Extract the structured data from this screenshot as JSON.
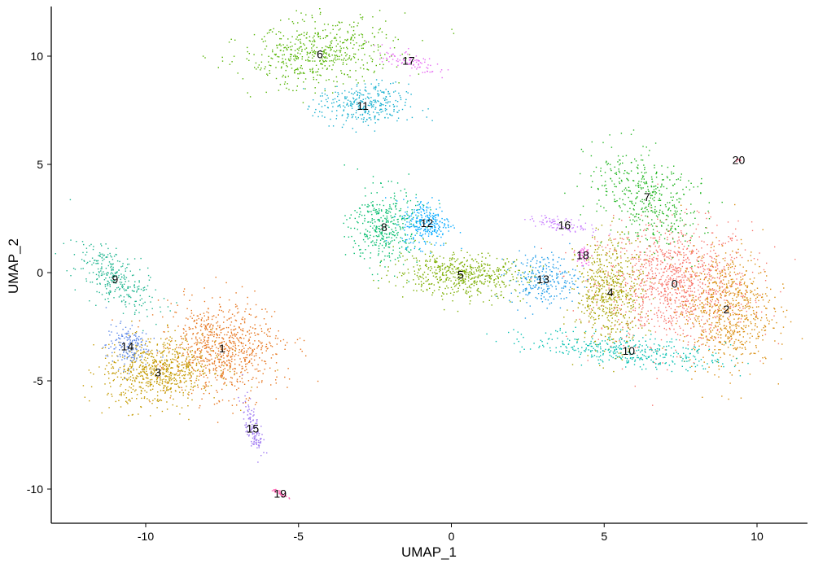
{
  "chart_data": {
    "type": "scatter",
    "title": "",
    "xlabel": "UMAP_1",
    "ylabel": "UMAP_2",
    "xlim": [
      -13.1,
      11.6
    ],
    "ylim": [
      -11.5,
      12.4
    ],
    "xticks": [
      -10,
      -5,
      0,
      5,
      10
    ],
    "yticks": [
      -10,
      -5,
      0,
      5,
      10
    ],
    "grid": false,
    "legend": "none",
    "clusters": [
      {
        "label": "0",
        "x": 7.3,
        "y": -0.5,
        "color": "#F8766D"
      },
      {
        "label": "1",
        "x": -7.5,
        "y": -3.5,
        "color": "#E7751D"
      },
      {
        "label": "2",
        "x": 9.0,
        "y": -1.7,
        "color": "#D98C0C"
      },
      {
        "label": "3",
        "x": -9.6,
        "y": -4.6,
        "color": "#C49A00"
      },
      {
        "label": "4",
        "x": 5.2,
        "y": -0.9,
        "color": "#A6A200"
      },
      {
        "label": "5",
        "x": 0.3,
        "y": -0.1,
        "color": "#7CAE00"
      },
      {
        "label": "6",
        "x": -4.3,
        "y": 10.1,
        "color": "#53B400"
      },
      {
        "label": "7",
        "x": 6.4,
        "y": 3.5,
        "color": "#1FB51F"
      },
      {
        "label": "8",
        "x": -2.2,
        "y": 2.1,
        "color": "#00BC6C"
      },
      {
        "label": "9",
        "x": -11.0,
        "y": -0.3,
        "color": "#1FB58F"
      },
      {
        "label": "10",
        "x": 5.8,
        "y": -3.6,
        "color": "#00BFB0"
      },
      {
        "label": "11",
        "x": -2.9,
        "y": 7.7,
        "color": "#14AFCF"
      },
      {
        "label": "12",
        "x": -0.8,
        "y": 2.3,
        "color": "#00A9FF"
      },
      {
        "label": "13",
        "x": 3.0,
        "y": -0.3,
        "color": "#1C9BE8"
      },
      {
        "label": "14",
        "x": -10.6,
        "y": -3.4,
        "color": "#5A86E8"
      },
      {
        "label": "15",
        "x": -6.5,
        "y": -7.2,
        "color": "#9D76F2"
      },
      {
        "label": "16",
        "x": 3.7,
        "y": 2.2,
        "color": "#C77CFF"
      },
      {
        "label": "17",
        "x": -1.4,
        "y": 9.8,
        "color": "#E76BF3"
      },
      {
        "label": "18",
        "x": 4.3,
        "y": 0.8,
        "color": "#F564E3"
      },
      {
        "label": "19",
        "x": -5.6,
        "y": -10.2,
        "color": "#FF5FB0"
      },
      {
        "label": "20",
        "x": 9.4,
        "y": 5.2,
        "color": "#FF6C91"
      }
    ]
  }
}
